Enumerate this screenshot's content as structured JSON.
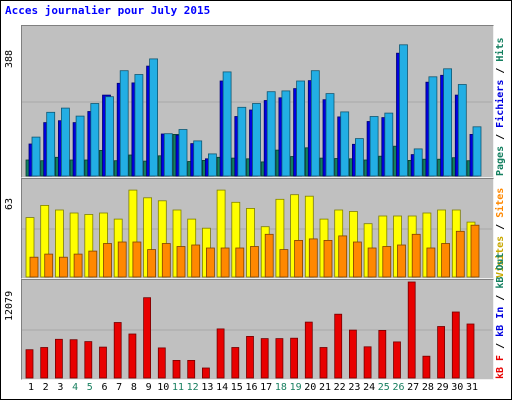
{
  "title": "Acces journalier pour July 2015",
  "colors": {
    "pages": "#137f5f",
    "hits": "#22aee4",
    "files": "#0000e0",
    "visits": "#ffff00",
    "sites": "#ff8800",
    "kbf": "#e80000",
    "weekday_label": "#000000",
    "weekend_label": "#177f5f"
  },
  "chart_data": [
    {
      "type": "bar",
      "name": "top",
      "ymax_label": "388",
      "ylim": [
        0,
        388
      ],
      "legend": [
        {
          "label": "Pages",
          "color": "#137f5f"
        },
        {
          "label": "Fichiers",
          "color": "#0000e0"
        },
        {
          "label": "Hits",
          "color": "#22aee4"
        }
      ],
      "categories": [
        "1",
        "2",
        "3",
        "4",
        "5",
        "6",
        "7",
        "8",
        "9",
        "10",
        "11",
        "12",
        "13",
        "14",
        "15",
        "16",
        "17",
        "18",
        "19",
        "20",
        "21",
        "22",
        "23",
        "24",
        "25",
        "26",
        "27",
        "28",
        "29",
        "30",
        "31"
      ],
      "series": [
        {
          "name": "Hits",
          "values": [
            102,
            167,
            178,
            157,
            190,
            208,
            276,
            266,
            307,
            111,
            122,
            92,
            58,
            273,
            180,
            190,
            221,
            223,
            249,
            276,
            216,
            168,
            98,
            156,
            165,
            344,
            71,
            260,
            281,
            240,
            129
          ]
        },
        {
          "name": "Fichiers",
          "values": [
            84,
            140,
            145,
            140,
            169,
            212,
            243,
            244,
            288,
            110,
            107,
            85,
            45,
            249,
            156,
            173,
            198,
            205,
            229,
            250,
            200,
            155,
            83,
            143,
            153,
            322,
            56,
            246,
            264,
            212,
            109
          ]
        },
        {
          "name": "Pages",
          "values": [
            42,
            40,
            49,
            42,
            42,
            67,
            40,
            55,
            39,
            53,
            109,
            38,
            41,
            49,
            47,
            45,
            37,
            68,
            51,
            74,
            47,
            46,
            45,
            42,
            52,
            78,
            41,
            44,
            44,
            48,
            40
          ]
        }
      ]
    },
    {
      "type": "bar",
      "name": "middle",
      "ymax_label": "63",
      "ylim": [
        0,
        63
      ],
      "legend": [
        {
          "label": "Visites",
          "color": "#ffff00"
        },
        {
          "label": "Sites",
          "color": "#ff8800"
        }
      ],
      "categories": [
        "1",
        "2",
        "3",
        "4",
        "5",
        "6",
        "7",
        "8",
        "9",
        "10",
        "11",
        "12",
        "13",
        "14",
        "15",
        "16",
        "17",
        "18",
        "19",
        "20",
        "21",
        "22",
        "23",
        "24",
        "25",
        "26",
        "27",
        "28",
        "29",
        "30",
        "31"
      ],
      "series": [
        {
          "name": "Visites",
          "values": [
            39,
            47,
            44,
            42,
            41,
            42,
            38,
            57,
            52,
            50,
            44,
            38,
            32,
            57,
            49,
            45,
            33,
            51,
            54,
            53,
            38,
            44,
            43,
            35,
            40,
            40,
            40,
            42,
            44,
            44,
            36
          ]
        },
        {
          "name": "Sites",
          "values": [
            13,
            15,
            13,
            15,
            17,
            22,
            23,
            23,
            18,
            22,
            20,
            21,
            19,
            19,
            19,
            20,
            28,
            18,
            24,
            25,
            24,
            27,
            23,
            19,
            20,
            21,
            28,
            19,
            22,
            30,
            34
          ]
        }
      ]
    },
    {
      "type": "bar",
      "name": "bottom",
      "ymax_label": "12079",
      "ylim": [
        0,
        12079
      ],
      "legend": [
        {
          "label": "kB F",
          "color": "#e80000"
        },
        {
          "label": "kB In",
          "color": "#0000e0"
        },
        {
          "label": "kB Out",
          "color": "#137f5f"
        }
      ],
      "categories": [
        "1",
        "2",
        "3",
        "4",
        "5",
        "6",
        "7",
        "8",
        "9",
        "10",
        "11",
        "12",
        "13",
        "14",
        "15",
        "16",
        "17",
        "18",
        "19",
        "20",
        "21",
        "22",
        "23",
        "24",
        "25",
        "26",
        "27",
        "28",
        "29",
        "30",
        "31"
      ],
      "series": [
        {
          "name": "kB F",
          "values": [
            3566,
            3838,
            4864,
            4813,
            4586,
            3882,
            6989,
            5539,
            10102,
            3790,
            2219,
            2219,
            1256,
            6176,
            3838,
            5240,
            4958,
            4958,
            5014,
            7029,
            3838,
            8033,
            6027,
            3928,
            5993,
            4537,
            12079,
            2744,
            6480,
            8302,
            6800
          ]
        }
      ]
    }
  ]
}
